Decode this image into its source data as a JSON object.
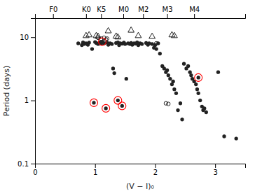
{
  "chart_data": {
    "type": "scatter",
    "xlabel": "(V − I)₀",
    "ylabel": "Period (days)",
    "log": "y",
    "grid": false,
    "xlim": [
      0,
      3.5
    ],
    "xticks": [
      0,
      1,
      2,
      3
    ],
    "ylim": [
      0.1,
      20
    ],
    "yticks": [
      0.1,
      1,
      10
    ],
    "x2lim": [
      0,
      3.5
    ],
    "x2ticks": [
      {
        "value": 0.3,
        "label": "F0"
      },
      {
        "value": 0.85,
        "label": "K0"
      },
      {
        "value": 1.1,
        "label": "K5"
      },
      {
        "value": 1.47,
        "label": "M0"
      },
      {
        "value": 1.8,
        "label": "M2"
      },
      {
        "value": 2.2,
        "label": "M3"
      },
      {
        "value": 2.65,
        "label": "M4"
      }
    ],
    "series": [
      {
        "marker": "circle",
        "x": [
          0.72,
          0.78,
          0.8,
          0.82,
          0.85,
          0.88,
          0.9,
          0.95,
          1.0,
          1.02,
          1.05,
          1.08,
          1.1,
          1.12,
          1.15,
          1.2,
          1.22,
          1.25,
          1.28,
          1.3,
          1.32,
          1.35,
          1.38,
          1.4,
          1.42,
          1.45,
          1.48,
          1.5,
          1.52,
          1.55,
          1.58,
          1.6,
          1.62,
          1.65,
          1.68,
          1.7,
          1.72,
          1.75,
          1.78,
          1.85,
          1.88,
          1.9,
          1.95,
          1.98,
          2.0,
          2.02,
          2.05,
          2.08,
          2.12,
          2.15,
          2.18,
          2.2,
          2.22,
          2.25,
          2.28,
          2.3,
          2.32,
          2.35,
          2.38,
          2.42,
          2.45,
          2.48,
          2.52,
          2.55,
          2.58,
          2.6,
          2.62,
          2.65,
          2.68,
          2.7,
          2.72,
          2.75,
          2.78,
          2.8,
          2.82,
          2.85,
          3.05,
          3.15,
          3.35
        ],
        "values": [
          8.0,
          7.5,
          8.3,
          7.8,
          8.0,
          7.6,
          8.2,
          6.5,
          8.4,
          8.1,
          7.8,
          8.3,
          7.9,
          8.5,
          8.0,
          8.2,
          7.6,
          8.0,
          7.8,
          3.2,
          2.7,
          8.1,
          8.3,
          7.5,
          8.0,
          7.9,
          8.2,
          7.8,
          2.2,
          8.0,
          7.8,
          8.1,
          7.6,
          8.0,
          7.9,
          8.3,
          7.5,
          8.0,
          7.8,
          8.1,
          7.6,
          8.0,
          7.8,
          6.8,
          7.5,
          6.5,
          8.0,
          5.5,
          3.5,
          3.2,
          2.8,
          3.0,
          2.5,
          2.2,
          1.8,
          2.0,
          1.5,
          1.3,
          0.7,
          0.9,
          0.5,
          3.8,
          3.2,
          3.5,
          2.8,
          2.5,
          2.2,
          2.0,
          1.8,
          1.5,
          1.3,
          1.0,
          0.8,
          0.7,
          0.75,
          0.65,
          2.8,
          0.27,
          0.25
        ]
      },
      {
        "marker": "open-circle",
        "x": [
          1.05,
          1.1,
          1.15,
          1.18,
          1.2,
          2.02,
          2.18,
          2.22
        ],
        "values": [
          9.8,
          9.5,
          9.8,
          9.2,
          9.5,
          8.0,
          0.9,
          0.88
        ]
      },
      {
        "marker": "open-triangle",
        "x": [
          0.85,
          0.9,
          1.02,
          1.05,
          1.22,
          1.35,
          1.38,
          1.6,
          1.72,
          1.95,
          2.28,
          2.32
        ],
        "values": [
          10.5,
          10.8,
          10.5,
          10.2,
          12.5,
          10.3,
          10.0,
          12.8,
          10.5,
          10.2,
          10.8,
          10.5
        ]
      },
      {
        "marker": "circled-dot",
        "color": "red",
        "x": [
          1.12,
          0.98,
          1.18,
          1.38,
          1.45,
          2.72
        ],
        "values": [
          8.5,
          0.92,
          0.75,
          1.0,
          0.82,
          2.3
        ]
      }
    ]
  }
}
